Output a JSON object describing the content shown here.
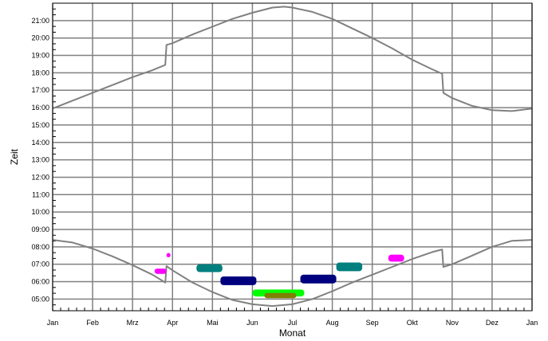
{
  "chart_data": {
    "type": "line",
    "title": "",
    "xlabel": "Monat",
    "ylabel": "Zeit",
    "x_tick_labels": [
      "Jan",
      "Feb",
      "Mrz",
      "Apr",
      "Mai",
      "Jun",
      "Jul",
      "Aug",
      "Sep",
      "Okt",
      "Nov",
      "Dez",
      "Jan"
    ],
    "y_tick_labels": [
      "05:00",
      "06:00",
      "07:00",
      "08:00",
      "09:00",
      "10:00",
      "11:00",
      "12:00",
      "13:00",
      "14:00",
      "15:00",
      "16:00",
      "17:00",
      "18:00",
      "19:00",
      "20:00",
      "21:00"
    ],
    "xlim": [
      0,
      12
    ],
    "ylim_hours": [
      4.33,
      22.0
    ],
    "grid": true,
    "line_color": "#808080",
    "grid_color": "#808080",
    "x_unit": "month",
    "y_unit": "hour",
    "series": [
      {
        "role": "sunset",
        "points": [
          [
            0,
            15.95
          ],
          [
            0.5,
            16.4
          ],
          [
            1,
            16.85
          ],
          [
            1.5,
            17.3
          ],
          [
            2,
            17.75
          ],
          [
            2.5,
            18.15
          ],
          [
            2.82,
            18.45
          ],
          [
            2.85,
            19.6
          ],
          [
            3,
            19.7
          ],
          [
            3.5,
            20.2
          ],
          [
            4,
            20.65
          ],
          [
            4.5,
            21.1
          ],
          [
            5,
            21.45
          ],
          [
            5.5,
            21.75
          ],
          [
            5.8,
            21.8
          ],
          [
            6,
            21.75
          ],
          [
            6.5,
            21.5
          ],
          [
            7,
            21.1
          ],
          [
            7.5,
            20.55
          ],
          [
            8,
            20.0
          ],
          [
            8.5,
            19.4
          ],
          [
            9,
            18.75
          ],
          [
            9.5,
            18.2
          ],
          [
            9.75,
            17.95
          ],
          [
            9.78,
            16.85
          ],
          [
            10,
            16.55
          ],
          [
            10.5,
            16.1
          ],
          [
            11,
            15.85
          ],
          [
            11.5,
            15.8
          ],
          [
            12,
            15.95
          ]
        ]
      },
      {
        "role": "sunrise",
        "points": [
          [
            0,
            8.4
          ],
          [
            0.5,
            8.25
          ],
          [
            1,
            7.9
          ],
          [
            1.5,
            7.45
          ],
          [
            2,
            6.95
          ],
          [
            2.5,
            6.4
          ],
          [
            2.82,
            5.95
          ],
          [
            2.85,
            6.9
          ],
          [
            3,
            6.65
          ],
          [
            3.5,
            5.95
          ],
          [
            4,
            5.4
          ],
          [
            4.5,
            4.95
          ],
          [
            5,
            4.7
          ],
          [
            5.5,
            4.6
          ],
          [
            6,
            4.7
          ],
          [
            6.5,
            5.0
          ],
          [
            7,
            5.45
          ],
          [
            7.5,
            5.95
          ],
          [
            8,
            6.4
          ],
          [
            8.5,
            6.85
          ],
          [
            9,
            7.3
          ],
          [
            9.5,
            7.7
          ],
          [
            9.75,
            7.85
          ],
          [
            9.78,
            6.85
          ],
          [
            10,
            7.0
          ],
          [
            10.5,
            7.5
          ],
          [
            11,
            8.0
          ],
          [
            11.5,
            8.35
          ],
          [
            12,
            8.4
          ]
        ]
      }
    ],
    "markers": [
      {
        "x": [
          2.55,
          2.85
        ],
        "y": [
          6.45,
          6.75
        ],
        "color": "#ff00ff"
      },
      {
        "x": [
          2.85,
          2.95
        ],
        "y": [
          7.4,
          7.65
        ],
        "color": "#ff00ff"
      },
      {
        "x": [
          3.6,
          4.25
        ],
        "y": [
          6.55,
          7.0
        ],
        "color": "#007f7f"
      },
      {
        "x": [
          4.2,
          5.1
        ],
        "y": [
          5.8,
          6.3
        ],
        "color": "#00007f"
      },
      {
        "x": [
          5.0,
          6.3
        ],
        "y": [
          5.15,
          5.55
        ],
        "color": "#00ff00"
      },
      {
        "x": [
          5.3,
          6.1
        ],
        "y": [
          5.05,
          5.35
        ],
        "color": "#7f7f00"
      },
      {
        "x": [
          6.2,
          7.1
        ],
        "y": [
          5.9,
          6.4
        ],
        "color": "#00007f"
      },
      {
        "x": [
          7.1,
          7.75
        ],
        "y": [
          6.6,
          7.1
        ],
        "color": "#007f7f"
      },
      {
        "x": [
          8.4,
          8.8
        ],
        "y": [
          7.15,
          7.55
        ],
        "color": "#ff00ff"
      }
    ]
  }
}
